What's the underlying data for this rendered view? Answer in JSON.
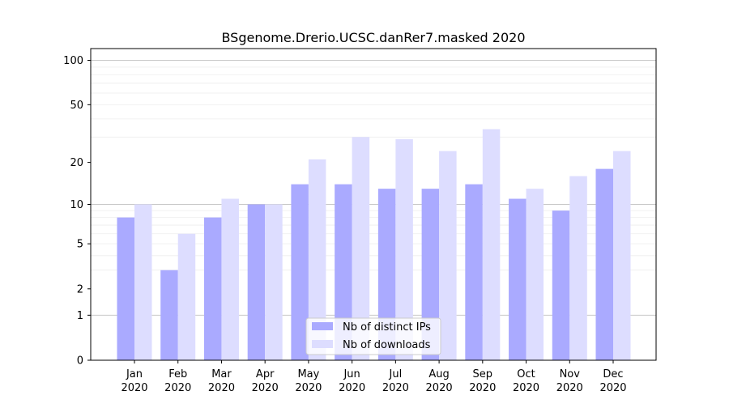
{
  "chart_data": {
    "type": "bar",
    "title": "BSgenome.Drerio.UCSC.danRer7.masked 2020",
    "xlabel": "",
    "ylabel": "",
    "yscale": "log1p",
    "ylim": [
      0,
      120
    ],
    "yticks": [
      0,
      1,
      2,
      5,
      10,
      20,
      50,
      100
    ],
    "ytick_labels": [
      "0",
      "1",
      "2",
      "5",
      "10",
      "20",
      "50",
      "100"
    ],
    "grid": true,
    "legend_position": "bottom-center",
    "categories": [
      [
        "Jan",
        "2020"
      ],
      [
        "Feb",
        "2020"
      ],
      [
        "Mar",
        "2020"
      ],
      [
        "Apr",
        "2020"
      ],
      [
        "May",
        "2020"
      ],
      [
        "Jun",
        "2020"
      ],
      [
        "Jul",
        "2020"
      ],
      [
        "Aug",
        "2020"
      ],
      [
        "Sep",
        "2020"
      ],
      [
        "Oct",
        "2020"
      ],
      [
        "Nov",
        "2020"
      ],
      [
        "Dec",
        "2020"
      ]
    ],
    "series": [
      {
        "name": "Nb of distinct IPs",
        "color": "#aaaaff",
        "values": [
          8,
          3,
          8,
          10,
          14,
          14,
          13,
          13,
          14,
          11,
          9,
          18
        ]
      },
      {
        "name": "Nb of downloads",
        "color": "#ddddff",
        "values": [
          10,
          6,
          11,
          10,
          21,
          30,
          29,
          24,
          34,
          13,
          16,
          24
        ]
      }
    ]
  }
}
